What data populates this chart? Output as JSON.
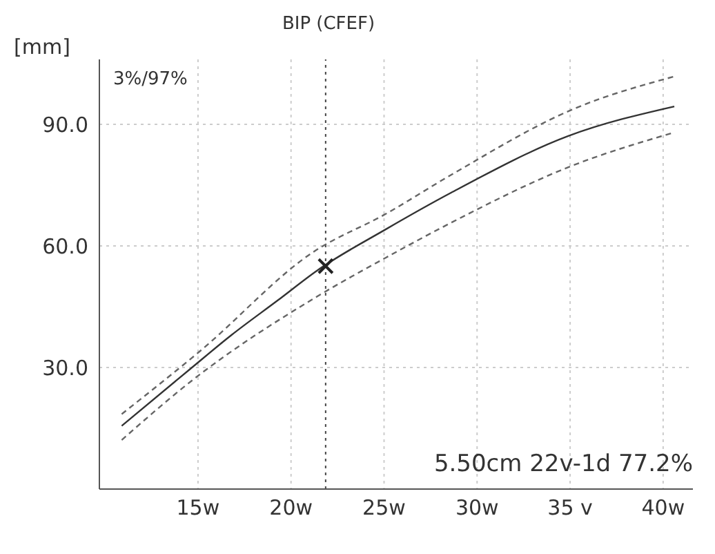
{
  "chart_data": {
    "type": "line",
    "title": "BIP (CFEF)",
    "ylabel": "[mm]",
    "xlim": [
      9.7,
      41.6
    ],
    "ylim": [
      0,
      106
    ],
    "xticks": [
      {
        "value": 15,
        "label": "15w"
      },
      {
        "value": 20,
        "label": "20w"
      },
      {
        "value": 25,
        "label": "25w"
      },
      {
        "value": 30,
        "label": "30w"
      },
      {
        "value": 35,
        "label": "35 v"
      },
      {
        "value": 40,
        "label": "40w"
      }
    ],
    "yticks": [
      {
        "value": 30,
        "label": "30.0"
      },
      {
        "value": 60,
        "label": "60.0"
      },
      {
        "value": 90,
        "label": "90.0"
      }
    ],
    "grid": true,
    "series": [
      {
        "color": "#666666",
        "line_style": "dashed",
        "marker": "none",
        "x": [
          10.9,
          15.1,
          21.2,
          25.1,
          28.6,
          35.2,
          40.6
        ],
        "values": [
          18.5,
          34.0,
          58.5,
          67.9,
          77.5,
          93.8,
          101.8
        ]
      },
      {
        "color": "#333333",
        "line_style": "solid",
        "marker": "none",
        "x": [
          10.9,
          14.6,
          16.8,
          19.3,
          21.4,
          25.1,
          28.6,
          34.9,
          40.6
        ],
        "values": [
          15.6,
          29.7,
          38.0,
          46.6,
          53.9,
          64.1,
          73.1,
          87.1,
          94.4
        ]
      },
      {
        "color": "#666666",
        "line_style": "dashed",
        "marker": "none",
        "x": [
          10.9,
          14.6,
          21.4,
          25.1,
          28.6,
          34.9,
          40.6
        ],
        "values": [
          12.1,
          26.5,
          47.5,
          57.1,
          65.7,
          79.4,
          88.0
        ]
      },
      {
        "type": "scatter",
        "color": "#222222",
        "marker": "cross",
        "x": [
          21.86
        ],
        "values": [
          55.0
        ]
      }
    ],
    "ref_lines": [
      {
        "axis": "x",
        "value": 21.86,
        "label": null,
        "color": "#444444",
        "line_style": "dotted"
      }
    ],
    "annotations": [
      "3%/97%",
      "5.50cm 22v-1d 77.2%"
    ]
  }
}
